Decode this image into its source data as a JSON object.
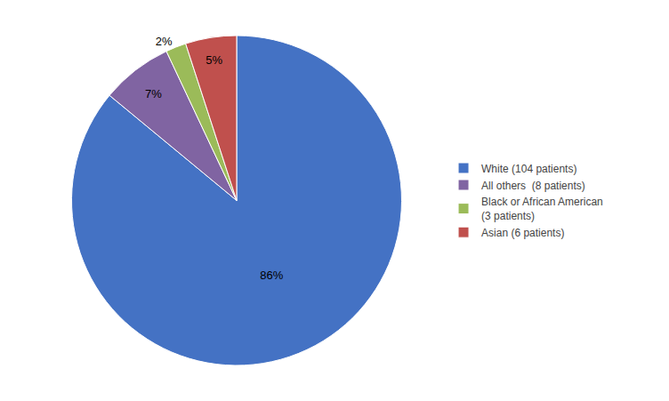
{
  "chart_data": {
    "type": "pie",
    "categories": [
      "White (104 patients)",
      "All others  (8 patients)",
      "Black or African American\n(3 patients)",
      "Asian (6 patients)"
    ],
    "values": [
      86,
      7,
      2,
      5
    ],
    "value_labels": [
      "86%",
      "7%",
      "2%",
      "5%"
    ],
    "colors": [
      "#4472C4",
      "#8064A2",
      "#9BBB59",
      "#C0504D"
    ],
    "data_labels": true,
    "legend": "right"
  }
}
